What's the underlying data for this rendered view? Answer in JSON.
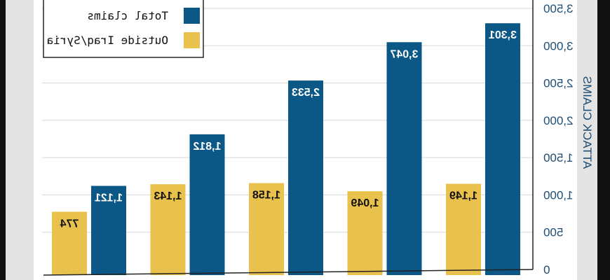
{
  "chart_data": {
    "type": "bar",
    "mirrored": true,
    "title": "",
    "xlabel": "",
    "ylabel": "ATTACK CLAIMS",
    "ylim": [
      0,
      3500
    ],
    "yticks": [
      "0",
      "500",
      "1,000",
      "1,500",
      "2,000",
      "2,500",
      "3,000",
      "3,500"
    ],
    "grid": true,
    "legend_position": "top-left",
    "series": [
      {
        "name": "Total claims",
        "color": "#0b5786",
        "values": [
          3301,
          3047,
          2533,
          1812,
          1121
        ],
        "labels": [
          "3,301",
          "3,047",
          "2,533",
          "1,812",
          "1,121"
        ]
      },
      {
        "name": "Outside Iraq/Syria",
        "color": "#e8c24c",
        "values": [
          1149,
          1049,
          1158,
          1143,
          774
        ],
        "labels": [
          "1,149",
          "1,049",
          "1,158",
          "1,143",
          "774"
        ]
      }
    ]
  }
}
